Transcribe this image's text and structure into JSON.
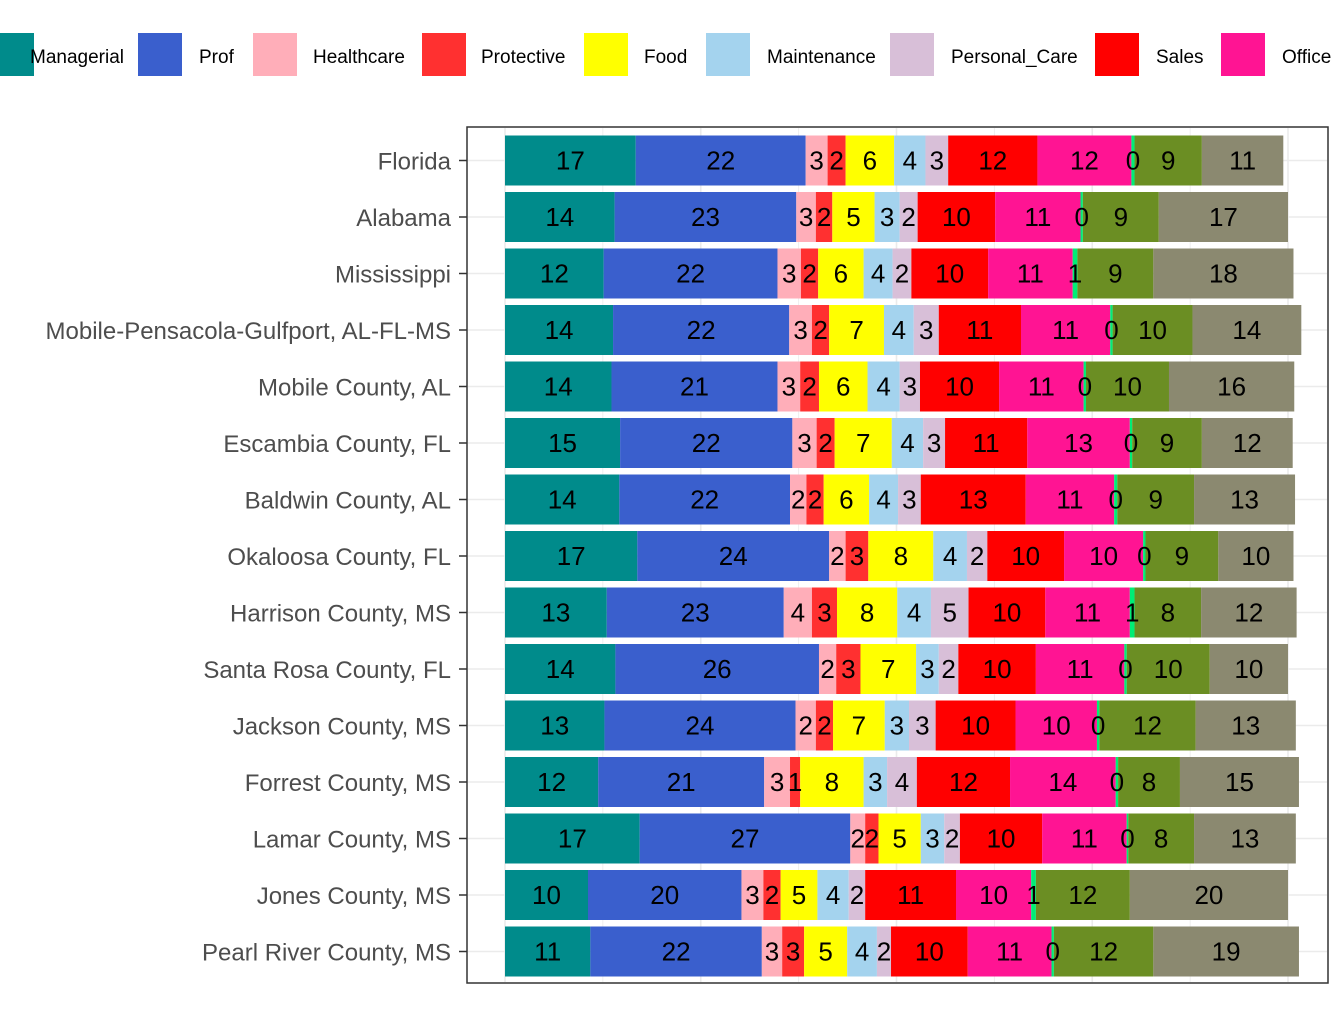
{
  "chart_data": {
    "type": "bar",
    "orientation": "horizontal",
    "stacked": true,
    "legend_position": "top",
    "grid": true,
    "xlim": [
      0,
      100
    ],
    "categories": [
      "Florida",
      "Alabama",
      "Mississippi",
      "Mobile-Pensacola-Gulfport, AL-FL-MS",
      "Mobile County, AL",
      "Escambia County, FL",
      "Baldwin County, AL",
      "Okaloosa County, FL",
      "Harrison County, MS",
      "Santa Rosa County, FL",
      "Jackson County, MS",
      "Forrest County, MS",
      "Lamar County, MS",
      "Jones County, MS",
      "Pearl River County, MS"
    ],
    "series": [
      {
        "name": "Managerial",
        "color": "#008b8b",
        "values": [
          17,
          14,
          12,
          14,
          14,
          15,
          14,
          17,
          13,
          14,
          13,
          12,
          17,
          10,
          11
        ]
      },
      {
        "name": "Prof",
        "color": "#3a5fcd",
        "values": [
          22,
          23,
          22,
          22,
          21,
          22,
          22,
          24,
          23,
          26,
          24,
          21,
          27,
          20,
          22
        ]
      },
      {
        "name": "Healthcare",
        "color": "#ffaeb9",
        "values": [
          3,
          3,
          3,
          3,
          3,
          3,
          2,
          2,
          4,
          2,
          2,
          3,
          2,
          3,
          3
        ]
      },
      {
        "name": "Protective",
        "color": "#ff3030",
        "values": [
          2,
          2,
          2,
          2,
          2,
          2,
          2,
          3,
          3,
          3,
          2,
          1,
          2,
          2,
          3
        ]
      },
      {
        "name": "Food",
        "color": "#ffff00",
        "values": [
          6,
          5,
          6,
          7,
          6,
          7,
          6,
          8,
          8,
          7,
          7,
          8,
          5,
          5,
          5
        ]
      },
      {
        "name": "Maintenance",
        "color": "#a4d3ee",
        "values": [
          4,
          3,
          4,
          4,
          4,
          4,
          4,
          4,
          4,
          3,
          3,
          3,
          3,
          4,
          4
        ]
      },
      {
        "name": "Personal_Care",
        "color": "#d8bfd8",
        "values": [
          3,
          2,
          2,
          3,
          3,
          3,
          3,
          2,
          5,
          2,
          3,
          4,
          2,
          2,
          2
        ]
      },
      {
        "name": "Sales",
        "color": "#ff0000",
        "values": [
          12,
          10,
          10,
          11,
          10,
          11,
          13,
          10,
          10,
          10,
          10,
          12,
          10,
          11,
          10
        ]
      },
      {
        "name": "Office",
        "color": "#ff1493",
        "values": [
          12,
          11,
          11,
          11,
          11,
          13,
          11,
          10,
          11,
          11,
          10,
          14,
          11,
          10,
          11
        ]
      },
      {
        "name": "",
        "color": "#00ee76",
        "values": [
          0,
          0,
          1,
          0,
          0,
          0,
          0,
          0,
          1,
          0,
          0,
          0,
          0,
          1,
          0
        ]
      },
      {
        "name": "",
        "color": "#6b8e23",
        "values": [
          9,
          9,
          9,
          10,
          10,
          9,
          9,
          9,
          8,
          10,
          12,
          8,
          8,
          12,
          12
        ]
      },
      {
        "name": "",
        "color": "#8b8970",
        "values": [
          11,
          17,
          18,
          14,
          16,
          12,
          13,
          10,
          12,
          10,
          13,
          15,
          13,
          20,
          19
        ]
      }
    ],
    "bar_widths": [
      [
        16.7,
        21.7,
        2.8,
        2.3,
        6.2,
        4.0,
        2.9,
        11.4,
        12.0,
        0.4,
        8.6,
        10.4
      ],
      [
        14.0,
        23.2,
        2.5,
        2.1,
        5.4,
        3.2,
        2.3,
        9.9,
        10.9,
        0.3,
        9.7,
        16.5
      ],
      [
        12.6,
        22.2,
        3.0,
        2.2,
        5.8,
        3.7,
        2.4,
        9.8,
        10.8,
        0.6,
        9.7,
        17.9
      ],
      [
        13.8,
        22.5,
        2.9,
        2.2,
        7.0,
        3.8,
        3.2,
        10.5,
        11.4,
        0.3,
        10.2,
        13.9
      ],
      [
        13.6,
        21.2,
        2.9,
        2.4,
        6.2,
        4.1,
        2.6,
        10.1,
        10.8,
        0.3,
        10.6,
        16.0
      ],
      [
        14.7,
        22.0,
        3.1,
        2.3,
        7.3,
        4.0,
        2.8,
        10.5,
        13.1,
        0.3,
        8.9,
        11.6
      ],
      [
        14.6,
        21.8,
        2.1,
        2.2,
        5.8,
        3.7,
        2.9,
        13.4,
        11.3,
        0.4,
        9.8,
        12.9
      ],
      [
        16.9,
        24.5,
        2.1,
        2.9,
        8.3,
        4.3,
        2.6,
        9.8,
        10.1,
        0.3,
        9.3,
        9.6
      ],
      [
        13.0,
        22.6,
        3.6,
        3.2,
        7.7,
        4.3,
        4.8,
        9.8,
        10.8,
        0.6,
        8.5,
        12.2
      ],
      [
        14.1,
        26.0,
        2.2,
        3.1,
        7.1,
        2.9,
        2.5,
        9.9,
        11.3,
        0.3,
        10.6,
        10.0
      ],
      [
        12.7,
        24.4,
        2.6,
        2.2,
        6.6,
        3.1,
        3.4,
        10.2,
        10.4,
        0.3,
        12.3,
        12.8
      ],
      [
        11.9,
        21.2,
        3.3,
        1.3,
        8.1,
        3.0,
        3.8,
        11.9,
        13.5,
        0.3,
        7.9,
        15.2
      ],
      [
        17.2,
        26.9,
        1.9,
        1.7,
        5.4,
        3.0,
        2.0,
        10.5,
        10.8,
        0.2,
        8.4,
        13.0
      ],
      [
        10.6,
        19.6,
        2.8,
        2.2,
        4.7,
        4.0,
        2.1,
        11.6,
        9.6,
        0.6,
        12.0,
        20.2
      ],
      [
        10.9,
        21.9,
        2.6,
        2.8,
        5.5,
        3.8,
        1.8,
        9.8,
        10.7,
        0.3,
        12.7,
        18.6
      ]
    ]
  }
}
